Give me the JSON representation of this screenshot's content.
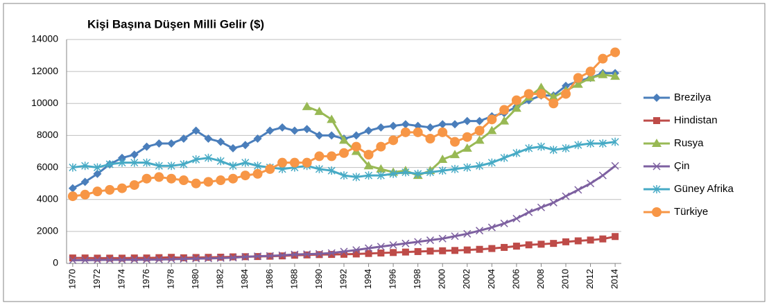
{
  "chart_data": {
    "type": "line",
    "title": "Kişi Başına Düşen Milli Gelir ($)",
    "x": [
      1970,
      1971,
      1972,
      1973,
      1974,
      1975,
      1976,
      1977,
      1978,
      1979,
      1980,
      1981,
      1982,
      1983,
      1984,
      1985,
      1986,
      1987,
      1988,
      1989,
      1990,
      1991,
      1992,
      1993,
      1994,
      1995,
      1996,
      1997,
      1998,
      1999,
      2000,
      2001,
      2002,
      2003,
      2004,
      2005,
      2006,
      2007,
      2008,
      2009,
      2010,
      2011,
      2012,
      2013,
      2014
    ],
    "xlim": [
      1969.5,
      2014.5
    ],
    "xticks": [
      1970,
      1972,
      1974,
      1976,
      1978,
      1980,
      1982,
      1984,
      1986,
      1988,
      1990,
      1992,
      1994,
      1996,
      1998,
      2000,
      2002,
      2004,
      2006,
      2008,
      2010,
      2012,
      2014
    ],
    "ylim": [
      0,
      14000
    ],
    "yticks": [
      0,
      2000,
      4000,
      6000,
      8000,
      10000,
      12000,
      14000
    ],
    "grid": true,
    "legend": "right",
    "series": [
      {
        "name": "Brezilya",
        "color": "#4a7ebb",
        "marker": "diamond",
        "values": [
          4700,
          5100,
          5600,
          6200,
          6600,
          6800,
          7300,
          7500,
          7500,
          7800,
          8300,
          7800,
          7600,
          7200,
          7400,
          7800,
          8300,
          8500,
          8300,
          8400,
          8000,
          8000,
          7800,
          8000,
          8300,
          8500,
          8600,
          8700,
          8600,
          8500,
          8700,
          8700,
          8900,
          8900,
          9200,
          9400,
          9800,
          10200,
          10500,
          10500,
          11100,
          11400,
          11600,
          11900,
          11900
        ]
      },
      {
        "name": "Hindistan",
        "color": "#be4b48",
        "marker": "square",
        "values": [
          340,
          340,
          330,
          330,
          330,
          340,
          340,
          360,
          380,
          350,
          370,
          380,
          390,
          410,
          420,
          430,
          450,
          470,
          510,
          530,
          550,
          560,
          570,
          590,
          620,
          650,
          680,
          710,
          740,
          770,
          790,
          810,
          840,
          880,
          930,
          1000,
          1080,
          1160,
          1200,
          1250,
          1350,
          1410,
          1460,
          1530,
          1680
        ]
      },
      {
        "name": "Rusya",
        "color": "#98b954",
        "marker": "triangle",
        "values": [
          null,
          null,
          null,
          null,
          null,
          null,
          null,
          null,
          null,
          null,
          null,
          null,
          null,
          null,
          null,
          null,
          null,
          null,
          null,
          9800,
          9500,
          9000,
          7700,
          7000,
          6100,
          5900,
          5700,
          5800,
          5500,
          5800,
          6500,
          6800,
          7200,
          7700,
          8300,
          8900,
          9700,
          10400,
          11000,
          10400,
          10800,
          11200,
          11600,
          11800,
          11700
        ]
      },
      {
        "name": "Çin",
        "color": "#7d60a0",
        "marker": "x",
        "values": [
          200,
          200,
          210,
          220,
          220,
          230,
          230,
          240,
          260,
          280,
          300,
          310,
          330,
          360,
          410,
          450,
          470,
          510,
          560,
          580,
          600,
          650,
          740,
          840,
          950,
          1050,
          1150,
          1250,
          1350,
          1450,
          1550,
          1700,
          1850,
          2050,
          2250,
          2500,
          2800,
          3200,
          3500,
          3800,
          4200,
          4600,
          5000,
          5500,
          6100
        ]
      },
      {
        "name": "Güney Afrika",
        "color": "#46aac5",
        "marker": "star",
        "values": [
          6000,
          6100,
          6000,
          6200,
          6300,
          6300,
          6300,
          6100,
          6100,
          6200,
          6500,
          6600,
          6400,
          6100,
          6300,
          6100,
          6000,
          5900,
          6000,
          6100,
          5900,
          5800,
          5500,
          5400,
          5500,
          5500,
          5600,
          5700,
          5600,
          5700,
          5800,
          5900,
          6000,
          6100,
          6300,
          6600,
          6900,
          7200,
          7300,
          7100,
          7200,
          7400,
          7500,
          7500,
          7600
        ]
      },
      {
        "name": "Türkiye",
        "color": "#f79646",
        "marker": "circle",
        "values": [
          4200,
          4300,
          4500,
          4600,
          4700,
          4900,
          5300,
          5400,
          5300,
          5200,
          5000,
          5100,
          5200,
          5300,
          5500,
          5600,
          5900,
          6300,
          6300,
          6300,
          6700,
          6700,
          6900,
          7300,
          6800,
          7300,
          7700,
          8200,
          8200,
          7800,
          8200,
          7600,
          7900,
          8300,
          9000,
          9600,
          10200,
          10600,
          10600,
          10000,
          10600,
          11600,
          12000,
          12800,
          13200
        ]
      }
    ]
  }
}
